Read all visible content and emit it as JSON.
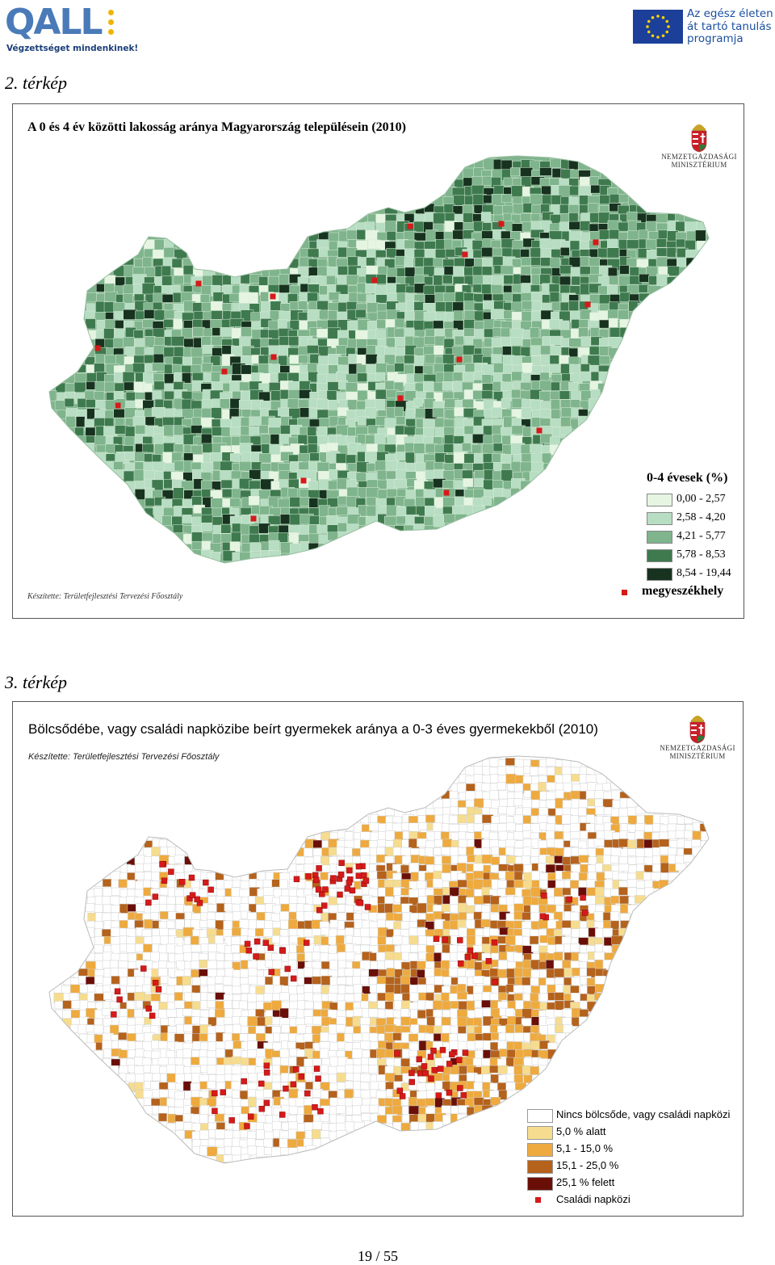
{
  "header": {
    "qall_logo_text": "QALL",
    "qall_tagline": "Végzettséget mindenkinek!",
    "eu_logo_lines": [
      "Az egész életen",
      "át tartó tanulás",
      "programja"
    ],
    "eu_flag_icon": "eu-flag-icon"
  },
  "map1": {
    "heading": "2. térkép",
    "title": "A 0 és 4 év közötti lakosság aránya Magyarország településein (2010)",
    "ministry_lines": [
      "NEMZETGAZDASÁGI",
      "MINISZTÉRIUM"
    ],
    "credit": "Készítette: Területfejlesztési Tervezési Főosztály",
    "legend_title": "0-4 évesek (%)",
    "legend": [
      {
        "label": "0,00 - 2,57",
        "color": "#e6f5e2"
      },
      {
        "label": "2,58 - 4,20",
        "color": "#b7ddc2"
      },
      {
        "label": "4,21 - 5,77",
        "color": "#7fb48c"
      },
      {
        "label": "5,78 - 8,53",
        "color": "#3f7a4f"
      },
      {
        "label": "8,54 - 19,44",
        "color": "#17331f"
      }
    ],
    "seat_label": "megyeszékhely",
    "seat_color": "#d61a1a"
  },
  "map2": {
    "heading": "3. térkép",
    "title": "Bölcsődébe, vagy családi napközibe beírt gyermekek aránya a 0-3 éves gyermekekből (2010)",
    "credit": "Készítette: Területfejlesztési Tervezési Főosztály",
    "ministry_lines": [
      "NEMZETGAZDASÁGI",
      "MINISZTÉRIUM"
    ],
    "legend": [
      {
        "label": "Nincs bölcsőde, vagy családi napközi",
        "color": "#ffffff"
      },
      {
        "label": "5,0 % alatt",
        "color": "#f6dc8e"
      },
      {
        "label": "5,1 - 15,0 %",
        "color": "#eeaa3e"
      },
      {
        "label": "15,1 - 25,0 %",
        "color": "#b5621c"
      },
      {
        "label": "25,1 % felett",
        "color": "#6a0f08"
      }
    ],
    "napkozi_label": "Családi napközi",
    "napkozi_color": "#d61a1a"
  },
  "footer": {
    "page_number": "19 / 55"
  }
}
